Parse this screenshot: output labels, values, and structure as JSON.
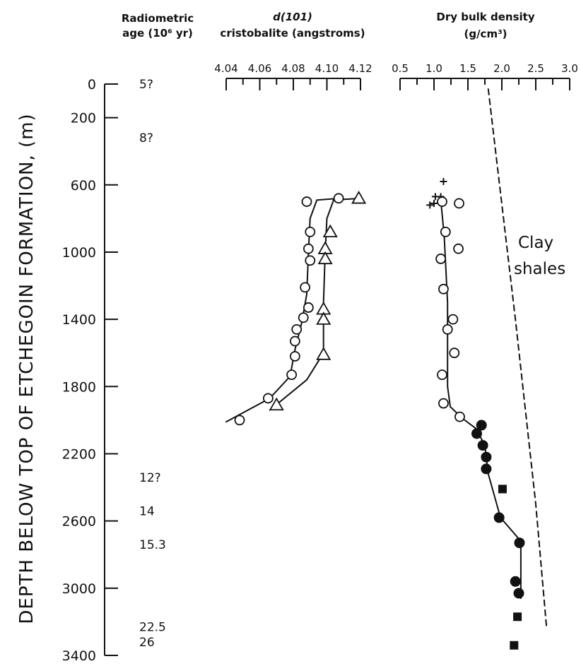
{
  "chart_data": {
    "type": "scatter",
    "ylabel": "DEPTH BELOW TOP OF ETCHEGOIN FORMATION, (m)",
    "y_axis": {
      "ticks": [
        "0",
        "200",
        "600",
        "1000",
        "1400",
        "1800",
        "2200",
        "2600",
        "3000",
        "3400"
      ],
      "tick_values": [
        0,
        200,
        600,
        1000,
        1400,
        1800,
        2200,
        2600,
        3000,
        3400
      ],
      "range": [
        0,
        3400
      ],
      "inverted": true
    },
    "age_column": {
      "header_line1": "Radiometric",
      "header_line2": "age (10⁶ yr)",
      "entries": [
        {
          "label": "5?",
          "depth": 0
        },
        {
          "label": "8?",
          "depth": 320
        },
        {
          "label": "12?",
          "depth": 2340
        },
        {
          "label": "14",
          "depth": 2540
        },
        {
          "label": "15.3",
          "depth": 2740
        },
        {
          "label": "22.5",
          "depth": 3230
        },
        {
          "label": "26",
          "depth": 3320
        }
      ]
    },
    "panels": [
      {
        "id": "cristobalite",
        "title_line1": "d(101)",
        "title_line2": "cristobalite (angstroms)",
        "x_axis": {
          "ticks": [
            "4.04",
            "4.06",
            "4.08",
            "4.10",
            "4.12"
          ],
          "tick_values": [
            4.04,
            4.06,
            4.08,
            4.1,
            4.12
          ],
          "range": [
            4.04,
            4.12
          ]
        },
        "series": [
          {
            "marker": "open-circle",
            "points": [
              {
                "x": 4.107,
                "y": 680
              },
              {
                "x": 4.088,
                "y": 700
              },
              {
                "x": 4.09,
                "y": 880
              },
              {
                "x": 4.089,
                "y": 980
              },
              {
                "x": 4.09,
                "y": 1050
              },
              {
                "x": 4.087,
                "y": 1210
              },
              {
                "x": 4.089,
                "y": 1330
              },
              {
                "x": 4.086,
                "y": 1390
              },
              {
                "x": 4.082,
                "y": 1460
              },
              {
                "x": 4.081,
                "y": 1530
              },
              {
                "x": 4.081,
                "y": 1620
              },
              {
                "x": 4.079,
                "y": 1730
              },
              {
                "x": 4.065,
                "y": 1870
              },
              {
                "x": 4.048,
                "y": 2000
              }
            ],
            "curve": [
              {
                "x": 4.108,
                "y": 680
              },
              {
                "x": 4.094,
                "y": 690
              },
              {
                "x": 4.09,
                "y": 800
              },
              {
                "x": 4.089,
                "y": 1000
              },
              {
                "x": 4.088,
                "y": 1250
              },
              {
                "x": 4.085,
                "y": 1420
              },
              {
                "x": 4.081,
                "y": 1580
              },
              {
                "x": 4.078,
                "y": 1740
              },
              {
                "x": 4.066,
                "y": 1870
              },
              {
                "x": 4.04,
                "y": 2010
              }
            ]
          },
          {
            "marker": "open-triangle",
            "points": [
              {
                "x": 4.119,
                "y": 680
              },
              {
                "x": 4.102,
                "y": 880
              },
              {
                "x": 4.099,
                "y": 980
              },
              {
                "x": 4.099,
                "y": 1040
              },
              {
                "x": 4.098,
                "y": 1340
              },
              {
                "x": 4.098,
                "y": 1400
              },
              {
                "x": 4.098,
                "y": 1610
              },
              {
                "x": 4.07,
                "y": 1910
              }
            ],
            "curve": [
              {
                "x": 4.12,
                "y": 680
              },
              {
                "x": 4.104,
                "y": 690
              },
              {
                "x": 4.1,
                "y": 800
              },
              {
                "x": 4.099,
                "y": 1000
              },
              {
                "x": 4.098,
                "y": 1300
              },
              {
                "x": 4.098,
                "y": 1600
              },
              {
                "x": 4.088,
                "y": 1760
              },
              {
                "x": 4.066,
                "y": 1940
              }
            ]
          }
        ]
      },
      {
        "id": "density",
        "title_line1": "Dry bulk density",
        "title_line2": "(g/cm³)",
        "x_axis": {
          "ticks": [
            "0.5",
            "1.0",
            "1.5",
            "2.0",
            "2.5",
            "3.0"
          ],
          "tick_values": [
            0.5,
            1.0,
            1.5,
            2.0,
            2.5,
            3.0
          ],
          "range": [
            0.5,
            3.0
          ]
        },
        "series": [
          {
            "marker": "plus",
            "points": [
              {
                "x": 1.14,
                "y": 580
              },
              {
                "x": 1.02,
                "y": 670
              },
              {
                "x": 1.1,
                "y": 670
              },
              {
                "x": 0.94,
                "y": 720
              },
              {
                "x": 1.0,
                "y": 710
              }
            ]
          },
          {
            "marker": "open-circle",
            "points": [
              {
                "x": 1.12,
                "y": 700
              },
              {
                "x": 1.37,
                "y": 710
              },
              {
                "x": 1.17,
                "y": 880
              },
              {
                "x": 1.36,
                "y": 980
              },
              {
                "x": 1.1,
                "y": 1040
              },
              {
                "x": 1.14,
                "y": 1220
              },
              {
                "x": 1.28,
                "y": 1400
              },
              {
                "x": 1.2,
                "y": 1460
              },
              {
                "x": 1.3,
                "y": 1600
              },
              {
                "x": 1.12,
                "y": 1730
              },
              {
                "x": 1.14,
                "y": 1900
              },
              {
                "x": 1.38,
                "y": 1980
              }
            ]
          },
          {
            "marker": "filled-circle",
            "points": [
              {
                "x": 1.7,
                "y": 2030
              },
              {
                "x": 1.63,
                "y": 2080
              },
              {
                "x": 1.72,
                "y": 2150
              },
              {
                "x": 1.77,
                "y": 2220
              },
              {
                "x": 1.77,
                "y": 2290
              },
              {
                "x": 1.96,
                "y": 2580
              },
              {
                "x": 2.26,
                "y": 2730
              },
              {
                "x": 2.2,
                "y": 2960
              },
              {
                "x": 2.25,
                "y": 3030
              }
            ]
          },
          {
            "marker": "filled-square",
            "points": [
              {
                "x": 2.01,
                "y": 2410
              },
              {
                "x": 2.23,
                "y": 3170
              },
              {
                "x": 2.18,
                "y": 3340
              }
            ]
          },
          {
            "marker": "none",
            "role": "fit-curve",
            "curve": [
              {
                "x": 1.1,
                "y": 690
              },
              {
                "x": 1.15,
                "y": 900
              },
              {
                "x": 1.2,
                "y": 1300
              },
              {
                "x": 1.2,
                "y": 1800
              },
              {
                "x": 1.24,
                "y": 1920
              },
              {
                "x": 1.42,
                "y": 1990
              },
              {
                "x": 1.62,
                "y": 2050
              },
              {
                "x": 1.75,
                "y": 2150
              },
              {
                "x": 1.8,
                "y": 2320
              },
              {
                "x": 1.98,
                "y": 2580
              },
              {
                "x": 2.28,
                "y": 2720
              },
              {
                "x": 2.28,
                "y": 3060
              }
            ]
          },
          {
            "marker": "none",
            "role": "clay-shales-trend",
            "line_style": "dashed",
            "curve": [
              {
                "x": 1.8,
                "y": 30
              },
              {
                "x": 2.2,
                "y": 1400
              },
              {
                "x": 2.5,
                "y": 2500
              },
              {
                "x": 2.66,
                "y": 3240
              }
            ]
          }
        ],
        "annotations": [
          {
            "text_line1": "Clay",
            "text_line2": "shales",
            "x": 2.8,
            "y": 1000
          }
        ]
      }
    ]
  }
}
